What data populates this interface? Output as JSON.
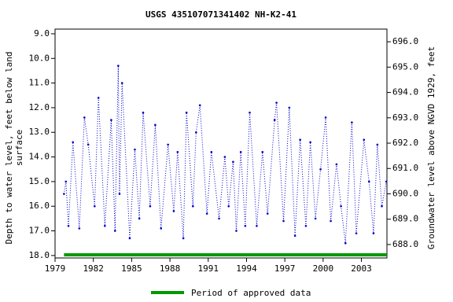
{
  "chart_data": {
    "type": "line",
    "title": "USGS 435107071341402 NH-K2-41",
    "ylabel": [
      "Depth to water level, feet below land",
      "surface"
    ],
    "y2label": "Groundwater level above NGVD 1929, feet",
    "xlim": [
      1979,
      2005.0
    ],
    "xticks": [
      1979,
      1982,
      1985,
      1988,
      1991,
      1994,
      1997,
      2000,
      2003
    ],
    "ylim": [
      8.81,
      18.1
    ],
    "y_inverted": true,
    "yticks": [
      {
        "value": 9,
        "label": "9.0"
      },
      {
        "value": 10,
        "label": "10.0"
      },
      {
        "value": 11,
        "label": "11.0"
      },
      {
        "value": 12,
        "label": "12.0"
      },
      {
        "value": 13,
        "label": "13.0"
      },
      {
        "value": 14,
        "label": "14.0"
      },
      {
        "value": 15,
        "label": "15.0"
      },
      {
        "value": 16,
        "label": "16.0"
      },
      {
        "value": 17,
        "label": "17.0"
      },
      {
        "value": 18,
        "label": "18.0"
      }
    ],
    "y2lim": [
      687.47,
      696.5
    ],
    "y2ticks": [
      {
        "value": 688,
        "label": "688.0"
      },
      {
        "value": 689,
        "label": "689.0"
      },
      {
        "value": 690,
        "label": "690.0"
      },
      {
        "value": 691,
        "label": "691.0"
      },
      {
        "value": 692,
        "label": "692.0"
      },
      {
        "value": 693,
        "label": "693.0"
      },
      {
        "value": 694,
        "label": "694.0"
      },
      {
        "value": 695,
        "label": "695.0"
      },
      {
        "value": 696,
        "label": "696.0"
      }
    ],
    "series": [
      {
        "name": "Depth to water level",
        "color": "#0000cc",
        "x": [
          1979.7,
          1979.85,
          1980.05,
          1980.4,
          1980.9,
          1981.3,
          1981.6,
          1982.1,
          1982.4,
          1982.9,
          1983.4,
          1983.7,
          1983.95,
          1984.05,
          1984.25,
          1984.85,
          1985.25,
          1985.6,
          1985.9,
          1986.45,
          1986.85,
          1987.3,
          1987.85,
          1988.3,
          1988.6,
          1989.05,
          1989.3,
          1989.8,
          1990.05,
          1990.35,
          1990.9,
          1991.25,
          1991.85,
          1992.3,
          1992.6,
          1992.95,
          1993.2,
          1993.55,
          1993.9,
          1994.25,
          1994.8,
          1995.25,
          1995.65,
          1996.2,
          1996.35,
          1996.9,
          1997.35,
          1997.8,
          1998.2,
          1998.65,
          1999.0,
          1999.4,
          1999.8,
          2000.2,
          2000.6,
          2001.05,
          2001.4,
          2001.75,
          2002.25,
          2002.6,
          2003.2,
          2003.6,
          2003.95,
          2004.25,
          2004.6,
          2004.95
        ],
        "values": [
          15.5,
          15.0,
          16.8,
          13.4,
          16.9,
          12.4,
          13.5,
          16.0,
          11.6,
          16.8,
          12.5,
          17.0,
          10.3,
          15.5,
          11.0,
          17.3,
          13.7,
          16.5,
          12.2,
          16.0,
          12.7,
          16.9,
          13.5,
          16.2,
          13.8,
          17.3,
          12.2,
          16.0,
          13.0,
          11.9,
          16.3,
          13.8,
          16.5,
          14.0,
          16.0,
          14.2,
          17.0,
          13.8,
          16.8,
          12.2,
          16.8,
          13.8,
          16.3,
          12.5,
          11.8,
          16.6,
          12.0,
          17.2,
          13.3,
          16.8,
          13.4,
          16.5,
          14.5,
          12.4,
          16.6,
          14.3,
          16.0,
          17.5,
          12.6,
          17.1,
          13.3,
          15.0,
          17.1,
          13.5,
          16.0,
          15.0
        ]
      }
    ],
    "approved_period": {
      "name": "Period of approved data",
      "color": "#009900",
      "x": [
        1979.7,
        2005.0
      ]
    }
  }
}
